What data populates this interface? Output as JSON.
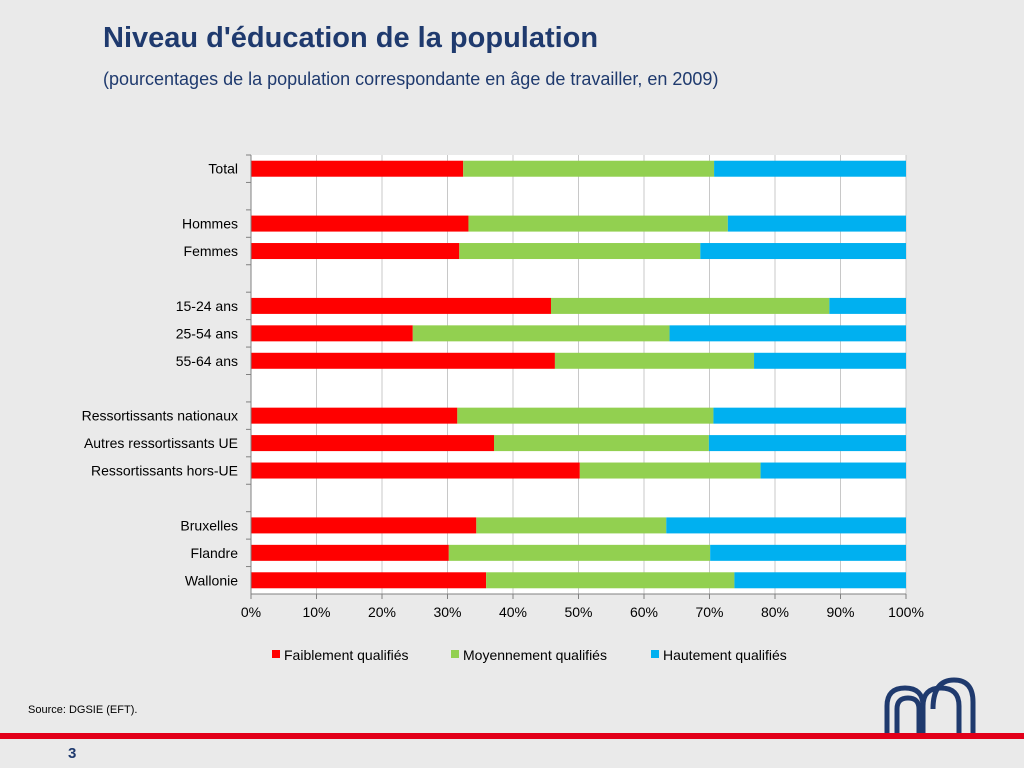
{
  "slide": {
    "title": "Niveau d'éducation de la population",
    "subtitle": "(pourcentages de la population correspondante en âge de travailler, en 2009)",
    "source": "Source: DGSIE (EFT).",
    "page_number": "3"
  },
  "chart_data": {
    "type": "bar",
    "orientation": "horizontal",
    "stacked": true,
    "title": "",
    "xlabel": "",
    "ylabel": "",
    "xlim": [
      0,
      100
    ],
    "x_ticks": [
      "0%",
      "10%",
      "20%",
      "30%",
      "40%",
      "50%",
      "60%",
      "70%",
      "80%",
      "90%",
      "100%"
    ],
    "legend": "bottom",
    "grid": true,
    "categories": [
      "Total",
      "",
      "Hommes",
      "Femmes",
      "",
      "15-24 ans",
      "25-54 ans",
      "55-64 ans",
      "",
      "Ressortissants nationaux",
      "Autres ressortissants UE",
      "Ressortissants hors-UE",
      "",
      "Bruxelles",
      "Flandre",
      "Wallonie"
    ],
    "series": [
      {
        "name": "Faiblement qualifiés",
        "color": "#ff0000",
        "values": [
          32.4,
          null,
          33.2,
          31.8,
          null,
          45.8,
          24.7,
          46.4,
          null,
          31.5,
          37.1,
          50.2,
          null,
          34.4,
          30.2,
          35.9
        ]
      },
      {
        "name": "Moyennement qualifiés",
        "color": "#92d050",
        "values": [
          38.3,
          null,
          39.6,
          36.8,
          null,
          42.5,
          39.2,
          30.4,
          null,
          39.1,
          32.8,
          27.6,
          null,
          29.0,
          39.9,
          37.9
        ]
      },
      {
        "name": "Hautement qualifiés",
        "color": "#00b0f0",
        "values": [
          29.3,
          null,
          27.2,
          31.4,
          null,
          11.7,
          36.1,
          23.2,
          null,
          29.4,
          30.1,
          22.2,
          null,
          36.6,
          29.9,
          26.2
        ]
      }
    ]
  }
}
